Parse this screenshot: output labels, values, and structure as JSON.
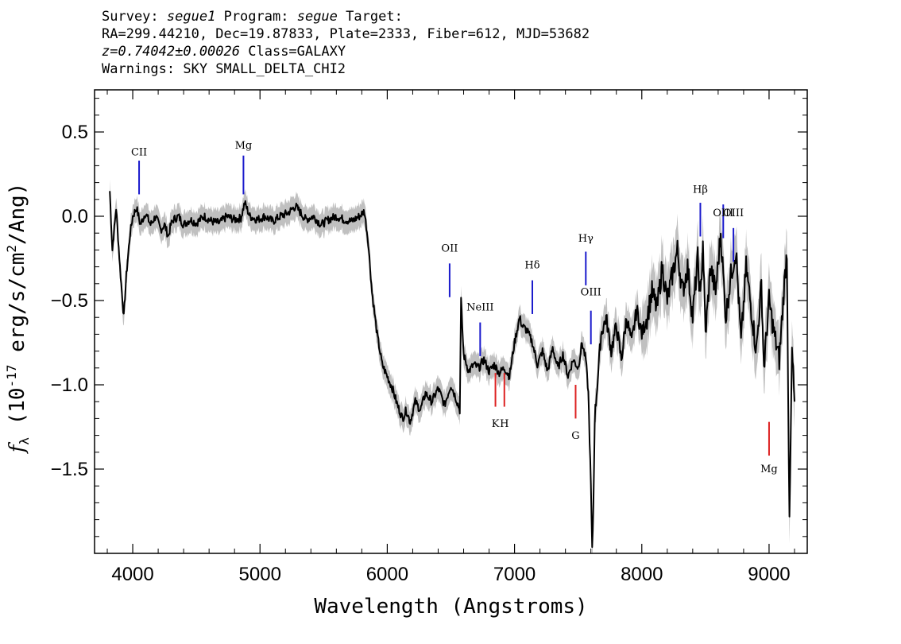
{
  "header": {
    "line1": {
      "survey_label": "Survey:",
      "survey": "segue1",
      "program_label": "Program:",
      "program": "segue",
      "target_label": "Target:"
    },
    "line2": "RA=299.44210, Dec=19.87833, Plate=2333, Fiber=612, MJD=53682",
    "line3": {
      "redshift": "z=0.74042±0.00026",
      "class": "Class=GALAXY"
    },
    "line4": "Warnings: SKY SMALL_DELTA_CHI2"
  },
  "chart_data": {
    "type": "line",
    "xlabel": "Wavelength (Angstroms)",
    "ylabel": "f_λ (10^-17 erg/s/cm^2/Ang)",
    "xlim": [
      3700,
      9300
    ],
    "ylim": [
      -2.0,
      0.75
    ],
    "xticks": [
      4000,
      5000,
      6000,
      7000,
      8000,
      9000
    ],
    "yticks": [
      0.5,
      0.0,
      -0.5,
      -1.0,
      -1.5
    ],
    "ytick_labels": [
      "0.5",
      "0.0",
      "−0.5",
      "−1.0",
      "−1.5"
    ],
    "grid": false,
    "series": [
      {
        "color": "#000000",
        "error_band_color": "#c0c0c0",
        "x": [
          3820,
          3840,
          3870,
          3900,
          3930,
          3950,
          3980,
          4000,
          4030,
          4060,
          4100,
          4140,
          4180,
          4220,
          4250,
          4280,
          4300,
          4320,
          4360,
          4400,
          4450,
          4500,
          4560,
          4620,
          4680,
          4740,
          4800,
          4850,
          4880,
          4920,
          4980,
          5040,
          5100,
          5160,
          5220,
          5280,
          5320,
          5360,
          5420,
          5480,
          5540,
          5600,
          5660,
          5720,
          5780,
          5820,
          5850,
          5880,
          5920,
          5960,
          6000,
          6040,
          6080,
          6120,
          6150,
          6180,
          6220,
          6260,
          6300,
          6350,
          6400,
          6450,
          6500,
          6540,
          6570,
          6580,
          6600,
          6640,
          6680,
          6720,
          6760,
          6800,
          6840,
          6880,
          6920,
          6960,
          7000,
          7040,
          7060,
          7100,
          7140,
          7180,
          7220,
          7260,
          7300,
          7340,
          7380,
          7420,
          7460,
          7500,
          7530,
          7560,
          7580,
          7600,
          7610,
          7620,
          7630,
          7650,
          7680,
          7720,
          7760,
          7800,
          7840,
          7880,
          7920,
          7960,
          8000,
          8040,
          8080,
          8120,
          8160,
          8200,
          8240,
          8280,
          8320,
          8360,
          8400,
          8440,
          8460,
          8480,
          8500,
          8540,
          8580,
          8620,
          8660,
          8700,
          8740,
          8780,
          8820,
          8860,
          8900,
          8940,
          8960,
          9000,
          9040,
          9080,
          9120,
          9140,
          9160,
          9180,
          9200
        ],
        "values": [
          0.15,
          -0.2,
          0.05,
          -0.3,
          -0.6,
          -0.35,
          -0.1,
          0.0,
          0.05,
          -0.05,
          0.02,
          -0.05,
          0.0,
          -0.08,
          -0.05,
          -0.12,
          -0.05,
          -0.02,
          0.0,
          -0.05,
          -0.02,
          -0.04,
          0.0,
          -0.03,
          -0.04,
          0.0,
          -0.02,
          -0.01,
          0.08,
          0.0,
          -0.02,
          0.0,
          -0.03,
          0.0,
          0.02,
          0.06,
          0.02,
          -0.02,
          0.0,
          -0.05,
          -0.02,
          0.0,
          -0.02,
          -0.03,
          0.0,
          0.03,
          -0.15,
          -0.45,
          -0.7,
          -0.88,
          -0.95,
          -1.02,
          -1.12,
          -1.2,
          -1.15,
          -1.22,
          -1.1,
          -1.15,
          -1.05,
          -1.1,
          -1.02,
          -1.12,
          -1.0,
          -1.08,
          -1.15,
          -0.5,
          -0.82,
          -0.92,
          -0.88,
          -0.9,
          -0.85,
          -0.92,
          -0.88,
          -0.93,
          -0.9,
          -0.95,
          -0.75,
          -0.6,
          -0.65,
          -0.68,
          -0.75,
          -0.88,
          -0.8,
          -0.92,
          -0.78,
          -0.9,
          -0.82,
          -0.95,
          -0.85,
          -0.9,
          -0.75,
          -0.85,
          -1.05,
          -1.6,
          -2.0,
          -1.7,
          -1.2,
          -1.0,
          -0.7,
          -0.6,
          -0.8,
          -0.65,
          -0.85,
          -0.6,
          -0.75,
          -0.55,
          -0.7,
          -0.6,
          -0.45,
          -0.55,
          -0.3,
          -0.5,
          -0.35,
          -0.2,
          -0.45,
          -0.3,
          -0.6,
          -0.25,
          -0.5,
          -0.15,
          -0.7,
          -0.3,
          -0.45,
          -0.1,
          -0.6,
          -0.35,
          -0.2,
          -0.75,
          -0.3,
          -0.55,
          -0.8,
          -0.4,
          -0.9,
          -0.5,
          -0.7,
          -0.85,
          -0.4,
          -0.2,
          -1.85,
          -0.8,
          -1.1
        ]
      }
    ],
    "emission_lines": [
      {
        "label": "CII",
        "x": 4050,
        "y_label": 0.36,
        "y_top": 0.33,
        "y_bottom": 0.13
      },
      {
        "label": "Mg",
        "x": 4870,
        "y_label": 0.4,
        "y_top": 0.36,
        "y_bottom": 0.13
      },
      {
        "label": "OII",
        "x": 6490,
        "y_label": -0.21,
        "y_top": -0.28,
        "y_bottom": -0.48
      },
      {
        "label": "NeIII",
        "x": 6730,
        "y_label": -0.56,
        "y_top": -0.63,
        "y_bottom": -0.83
      },
      {
        "label": "Hδ",
        "x": 7140,
        "y_label": -0.31,
        "y_top": -0.38,
        "y_bottom": -0.58
      },
      {
        "label": "Hγ",
        "x": 7560,
        "y_label": -0.15,
        "y_top": -0.21,
        "y_bottom": -0.41
      },
      {
        "label": "OIII",
        "x": 7600,
        "y_label": -0.47,
        "y_top": -0.56,
        "y_bottom": -0.76
      },
      {
        "label": "Hβ",
        "x": 8460,
        "y_label": 0.14,
        "y_top": 0.08,
        "y_bottom": -0.12
      },
      {
        "label": "OIII",
        "x": 8640,
        "y_label": 0.0,
        "y_top": 0.07,
        "y_bottom": -0.13
      },
      {
        "label": "OIII",
        "x": 8720,
        "y_label": 0.0,
        "y_top": -0.07,
        "y_bottom": -0.27
      }
    ],
    "absorption_lines": [
      {
        "label": "K",
        "x": 6850,
        "y_label": -1.25,
        "y_top": -0.93,
        "y_bottom": -1.13
      },
      {
        "label": "H",
        "x": 6920,
        "y_label": -1.25,
        "y_top": -0.93,
        "y_bottom": -1.13
      },
      {
        "label": "G",
        "x": 7480,
        "y_label": -1.32,
        "y_top": -1.0,
        "y_bottom": -1.2
      },
      {
        "label": "Mg",
        "x": 9000,
        "y_label": -1.52,
        "y_top": -1.22,
        "y_bottom": -1.42
      }
    ]
  }
}
